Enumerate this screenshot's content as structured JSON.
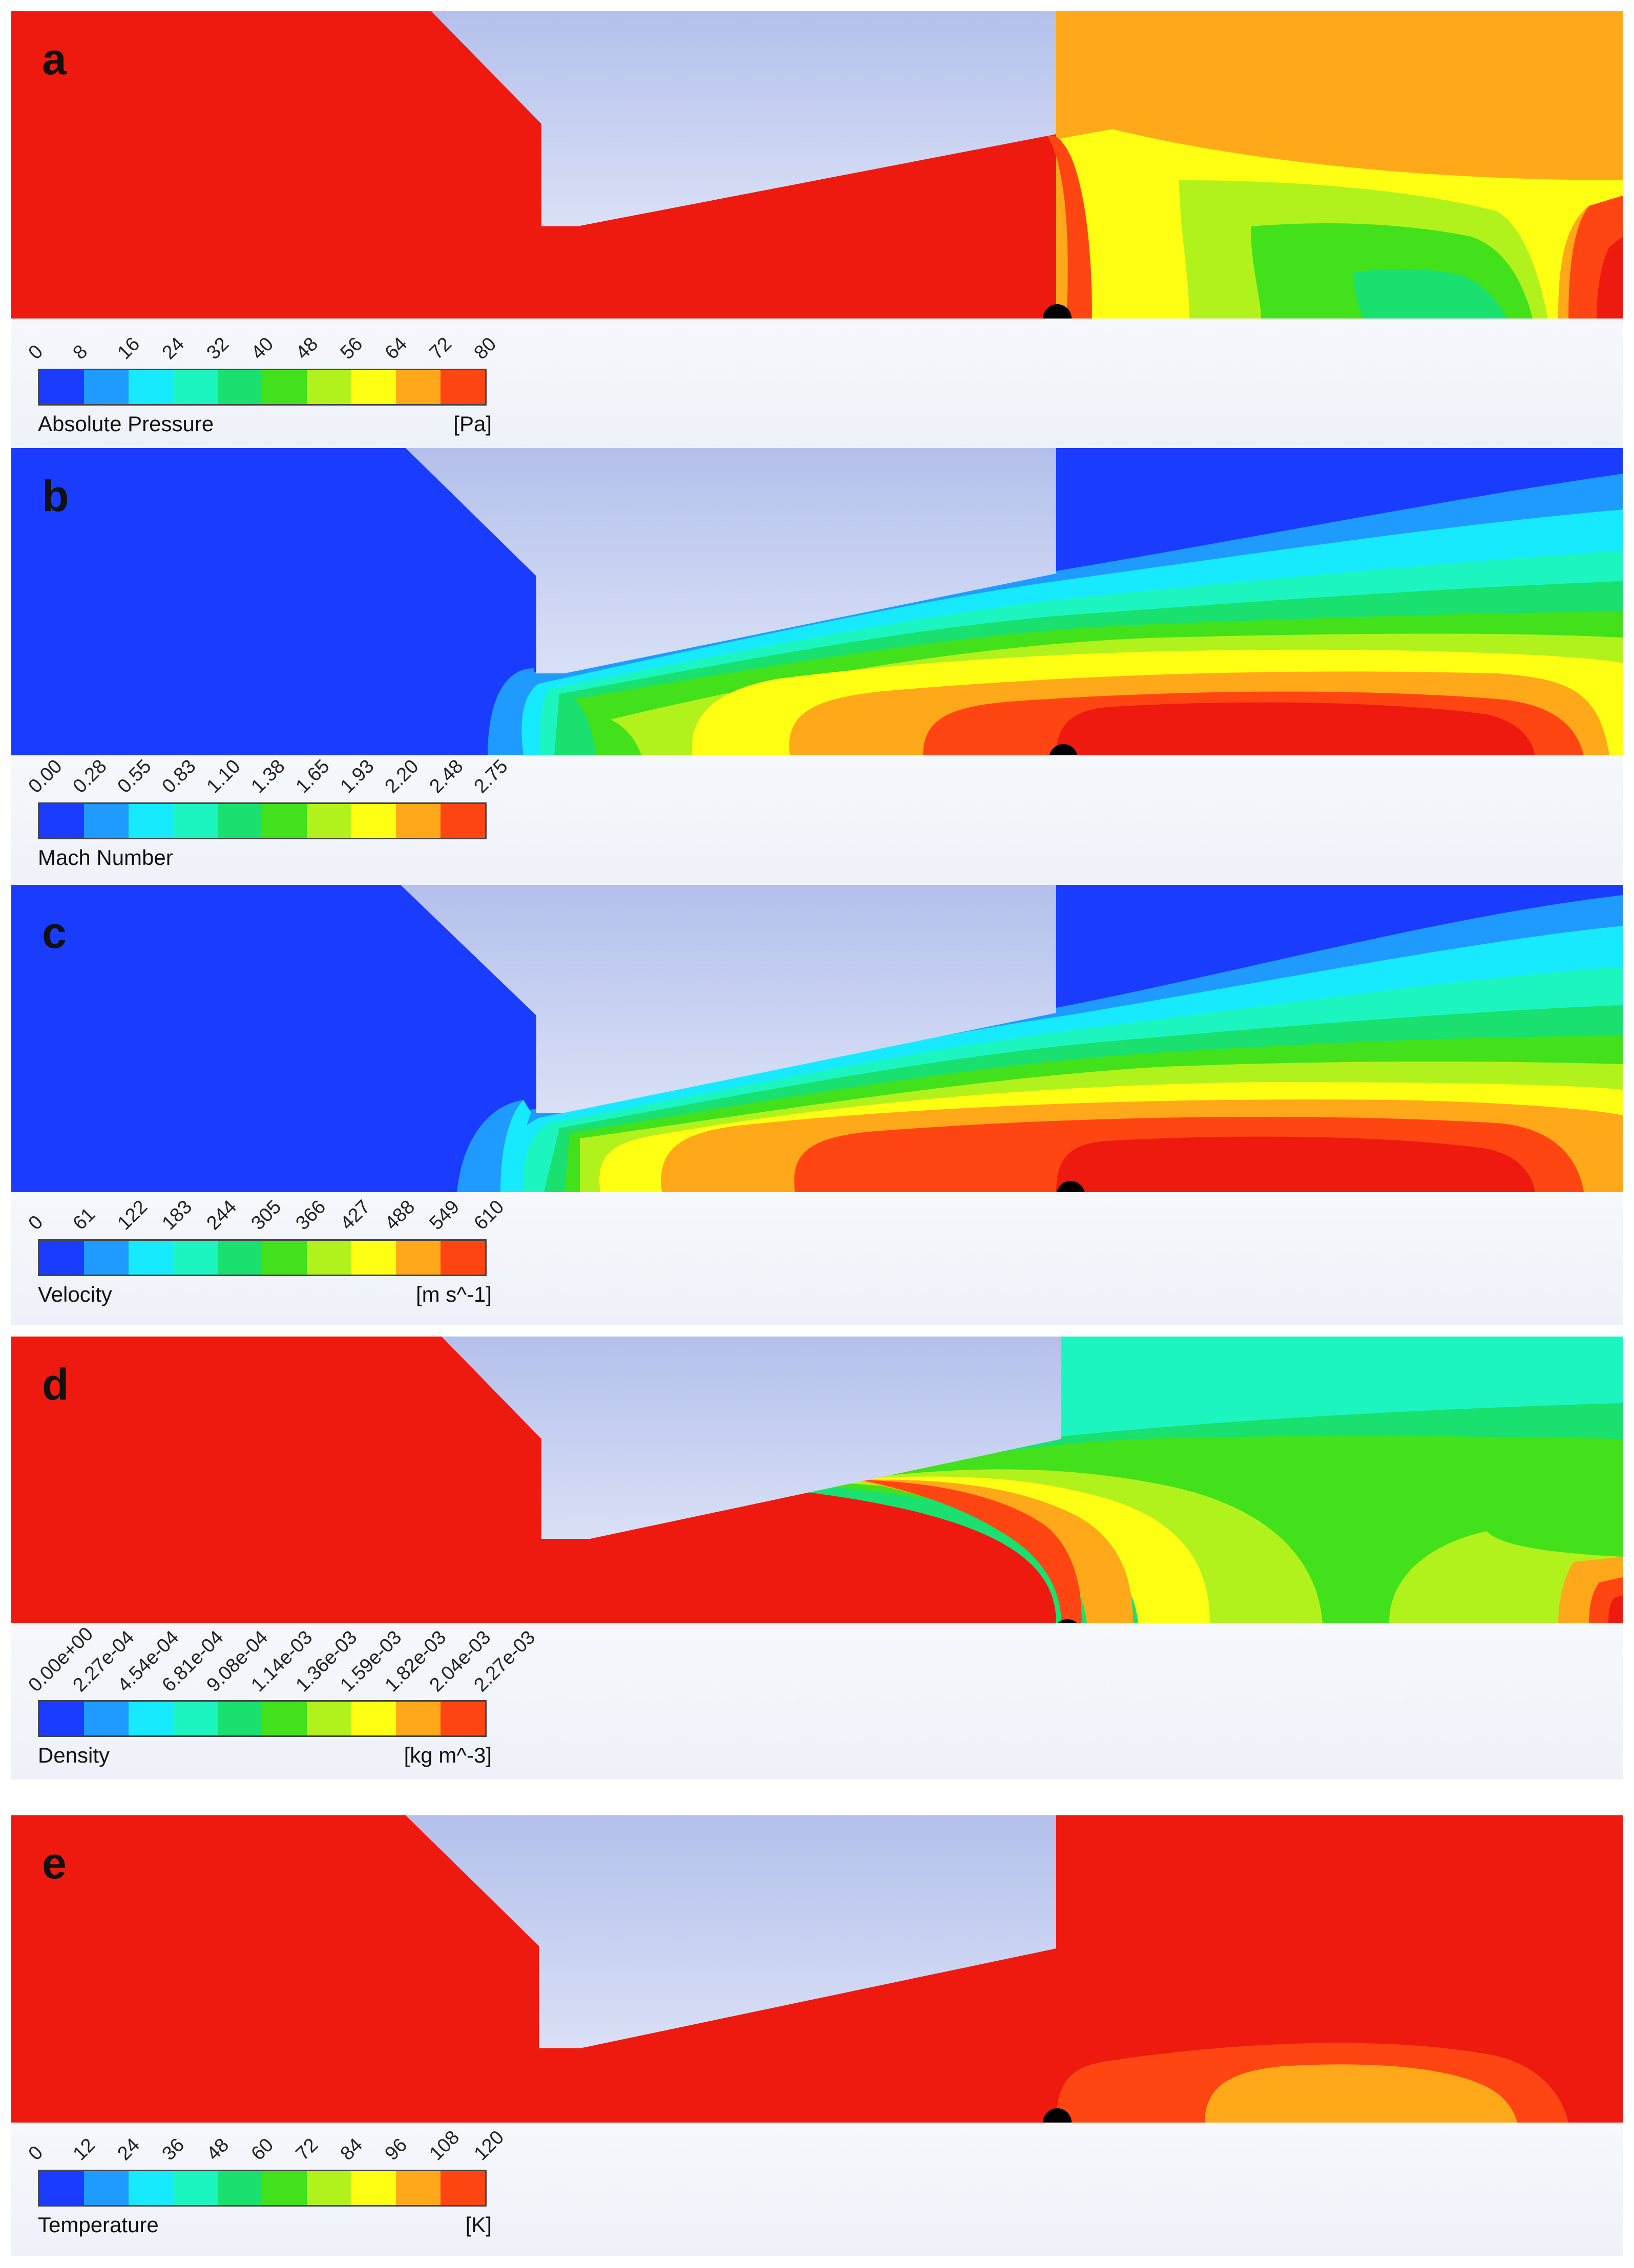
{
  "panels": [
    {
      "letter": "a",
      "quantity": "Absolute Pressure",
      "unit": "[Pa]",
      "ticks": [
        "0",
        "8",
        "16",
        "24",
        "32",
        "40",
        "48",
        "56",
        "64",
        "72",
        "80"
      ]
    },
    {
      "letter": "b",
      "quantity": "Mach Number",
      "unit": "",
      "ticks": [
        "0.00",
        "0.28",
        "0.55",
        "0.83",
        "1.10",
        "1.38",
        "1.65",
        "1.93",
        "2.20",
        "2.48",
        "2.75"
      ]
    },
    {
      "letter": "c",
      "quantity": "Velocity",
      "unit": "[m s^-1]",
      "ticks": [
        "0",
        "61",
        "122",
        "183",
        "244",
        "305",
        "366",
        "427",
        "488",
        "549",
        "610"
      ]
    },
    {
      "letter": "d",
      "quantity": "Density",
      "unit": "[kg m^-3]",
      "ticks": [
        "0.00e+00",
        "2.27e-04",
        "4.54e-04",
        "6.81e-04",
        "9.08e-04",
        "1.14e-03",
        "1.36e-03",
        "1.59e-03",
        "1.82e-03",
        "2.04e-03",
        "2.27e-03"
      ]
    },
    {
      "letter": "e",
      "quantity": "Temperature",
      "unit": "[K]",
      "ticks": [
        "0",
        "12",
        "24",
        "36",
        "48",
        "60",
        "72",
        "84",
        "96",
        "108",
        "120"
      ]
    }
  ],
  "colormap": [
    "#1a3cff",
    "#1f9bff",
    "#17eaff",
    "#1df5c0",
    "#19e06e",
    "#43e01c",
    "#b2f21c",
    "#ffff14",
    "#ffa91a",
    "#ff4612"
  ],
  "colors": {
    "solid_body": "#c3cdee",
    "background": "#ffffff"
  }
}
